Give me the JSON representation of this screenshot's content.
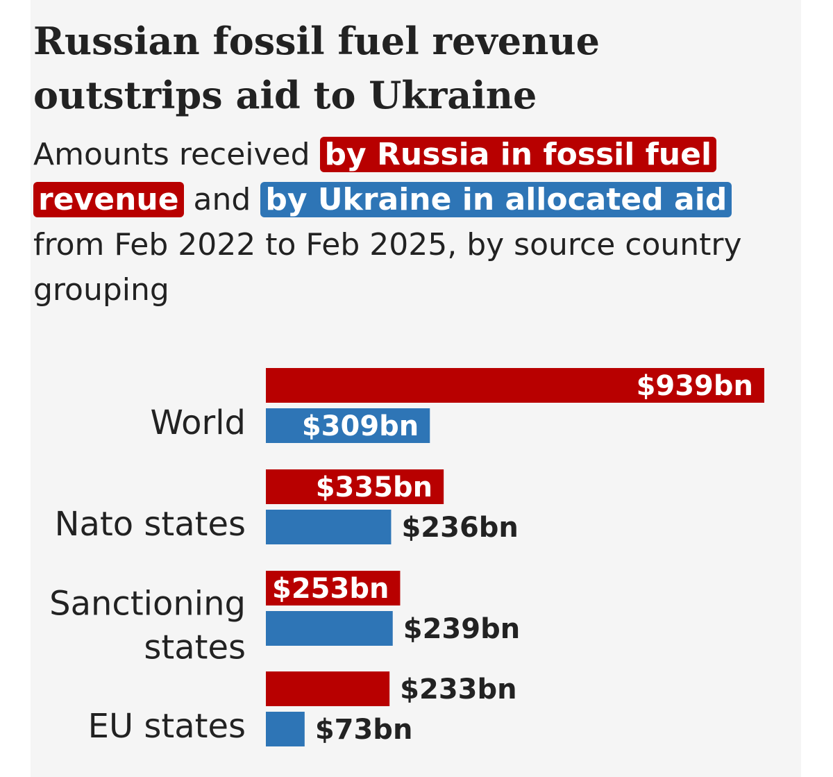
{
  "title": "Russian fossil fuel revenue outstrips aid to Ukraine",
  "subtitle": {
    "part1": "Amounts received ",
    "highlight_russia": "by Russia in fossil fuel revenue",
    "part2": " and ",
    "highlight_ukraine": "by Ukraine in allocated aid",
    "part3": " from Feb 2022 to Feb 2025, by source country grouping"
  },
  "colors": {
    "russia": "#b80000",
    "ukraine": "#2e75b6",
    "text": "#222222",
    "panel": "#f5f5f5"
  },
  "chart_data": {
    "type": "bar",
    "orientation": "horizontal",
    "categories": [
      [
        "World"
      ],
      [
        "Nato states"
      ],
      [
        "Sanctioning",
        "states"
      ],
      [
        "EU states"
      ]
    ],
    "series": [
      {
        "key": "russia",
        "values": [
          939,
          335,
          253,
          233
        ],
        "labels": [
          "$939bn",
          "$335bn",
          "$253bn",
          "$233bn"
        ]
      },
      {
        "key": "ukraine",
        "values": [
          309,
          236,
          239,
          73
        ],
        "labels": [
          "$309bn",
          "$236bn",
          "$239bn",
          "$73bn"
        ]
      }
    ],
    "unit": "$bn",
    "xlim": [
      0,
      939
    ],
    "grid": false
  }
}
